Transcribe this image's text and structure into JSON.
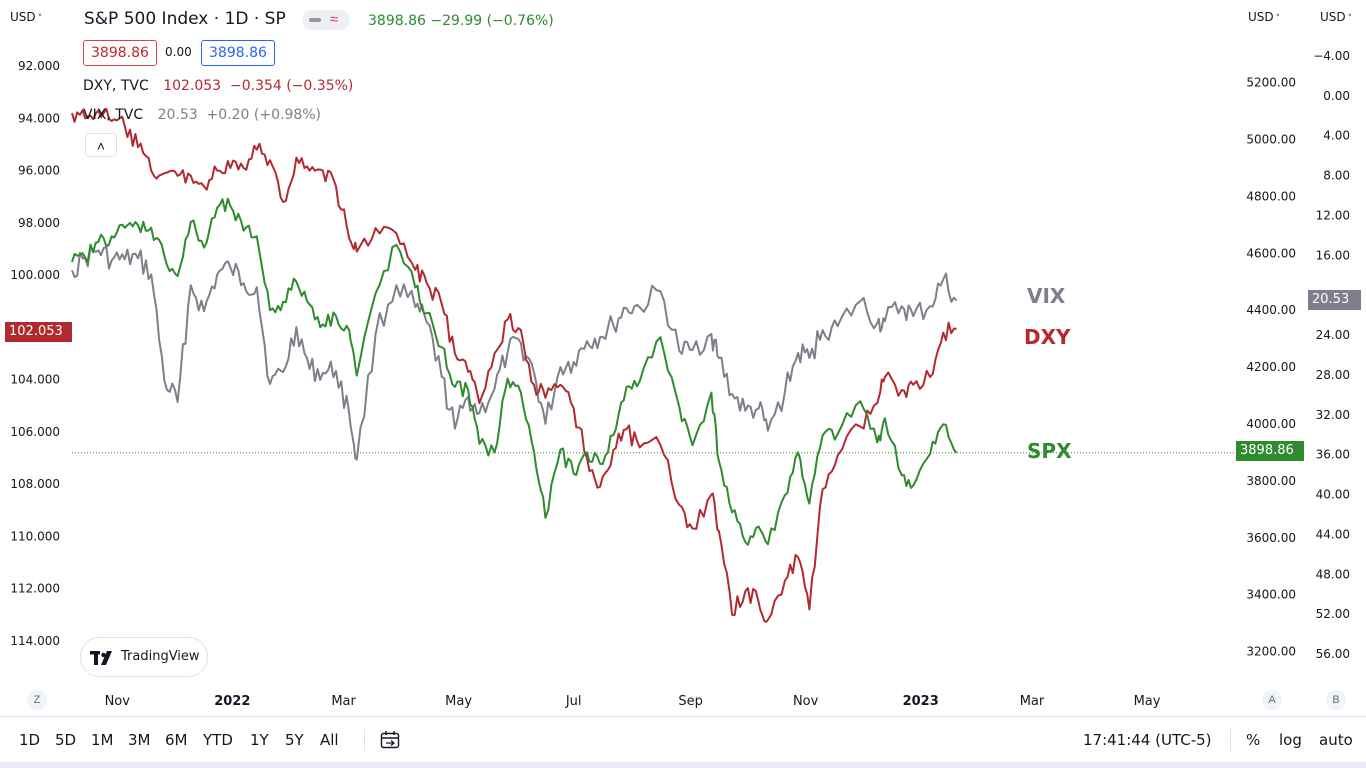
{
  "header": {
    "title": "S&P 500 Index · 1D · SP",
    "price": "3898.86",
    "change": "−29.99 (−0.76%)",
    "currency_left": "USD",
    "currency_right1": "USD",
    "currency_right2": "USD",
    "box_red": "3898.86",
    "box_mid": "0.00",
    "box_blue": "3898.86"
  },
  "legend": {
    "dxy_name": "DXY, TVC",
    "dxy_values": "102.053  −0.354 (−0.35%)",
    "vix_name": "VIX, TVC",
    "vix_values": "20.53  +0.20 (+0.98%)"
  },
  "price_tags": {
    "dxy": "102.053",
    "vix": "20.53",
    "spx": "3898.86"
  },
  "watermark": "TradingView",
  "range_buttons": [
    "1D",
    "5D",
    "1M",
    "3M",
    "6M",
    "YTD",
    "1Y",
    "5Y",
    "All"
  ],
  "clock": "17:41:44 (UTC-5)",
  "options": {
    "percent": "%",
    "log": "log",
    "auto": "auto"
  },
  "scale_buttons": {
    "z": "Z",
    "a": "A",
    "b": "B"
  },
  "colors": {
    "spx": "#2e8b2e",
    "dxy": "#b22a30",
    "vix": "#7f7f8c",
    "spx_text": "#2e8b2e"
  },
  "chart_data": {
    "type": "line",
    "x_ticks": [
      {
        "date": "2021-11-01",
        "label": "Nov"
      },
      {
        "date": "2022-01-01",
        "label": "2022",
        "bold": true
      },
      {
        "date": "2022-03-01",
        "label": "Mar"
      },
      {
        "date": "2022-05-01",
        "label": "May"
      },
      {
        "date": "2022-07-01",
        "label": "Jul"
      },
      {
        "date": "2022-09-01",
        "label": "Sep"
      },
      {
        "date": "2022-11-01",
        "label": "Nov"
      },
      {
        "date": "2023-01-01",
        "label": "2023",
        "bold": true
      },
      {
        "date": "2023-03-01",
        "label": "Mar"
      },
      {
        "date": "2023-05-01",
        "label": "May"
      }
    ],
    "x_range": [
      "2021-10-08",
      "2023-06-14"
    ],
    "axes": {
      "dxy": {
        "side": "left",
        "inverted": true,
        "range": [
          91.0,
          115.5
        ],
        "ticks": [
          92,
          94,
          96,
          98,
          100,
          102,
          104,
          106,
          108,
          110,
          112,
          114
        ]
      },
      "spx": {
        "side": "right",
        "range": [
          3100,
          5350
        ],
        "ticks": [
          3200,
          3400,
          3600,
          3800,
          4000,
          4200,
          4400,
          4600,
          4800,
          5000,
          5200
        ]
      },
      "vix": {
        "side": "right",
        "inverted": true,
        "range": [
          -5.6,
          58.6
        ],
        "ticks": [
          -4,
          0,
          4,
          8,
          12,
          16,
          20,
          24,
          28,
          32,
          36,
          40,
          44,
          48,
          52,
          56
        ]
      }
    },
    "series": [
      {
        "name": "SPX",
        "axis": "spx",
        "points": [
          [
            "2021-10-08",
            4570
          ],
          [
            "2021-10-15",
            4585
          ],
          [
            "2021-10-22",
            4640
          ],
          [
            "2021-10-29",
            4660
          ],
          [
            "2021-11-05",
            4690
          ],
          [
            "2021-11-12",
            4700
          ],
          [
            "2021-11-19",
            4690
          ],
          [
            "2021-11-26",
            4590
          ],
          [
            "2021-12-03",
            4520
          ],
          [
            "2021-12-10",
            4710
          ],
          [
            "2021-12-17",
            4620
          ],
          [
            "2021-12-24",
            4760
          ],
          [
            "2021-12-31",
            4766
          ],
          [
            "2022-01-07",
            4680
          ],
          [
            "2022-01-14",
            4660
          ],
          [
            "2022-01-21",
            4400
          ],
          [
            "2022-01-28",
            4430
          ],
          [
            "2022-02-04",
            4500
          ],
          [
            "2022-02-11",
            4420
          ],
          [
            "2022-02-18",
            4350
          ],
          [
            "2022-02-25",
            4380
          ],
          [
            "2022-03-04",
            4330
          ],
          [
            "2022-03-08",
            4170
          ],
          [
            "2022-03-18",
            4460
          ],
          [
            "2022-03-29",
            4630
          ],
          [
            "2022-04-08",
            4480
          ],
          [
            "2022-04-14",
            4390
          ],
          [
            "2022-04-22",
            4270
          ],
          [
            "2022-04-29",
            4130
          ],
          [
            "2022-05-06",
            4120
          ],
          [
            "2022-05-12",
            3930
          ],
          [
            "2022-05-20",
            3900
          ],
          [
            "2022-05-27",
            4160
          ],
          [
            "2022-06-03",
            4110
          ],
          [
            "2022-06-10",
            3900
          ],
          [
            "2022-06-16",
            3670
          ],
          [
            "2022-06-24",
            3910
          ],
          [
            "2022-07-01",
            3825
          ],
          [
            "2022-07-08",
            3900
          ],
          [
            "2022-07-15",
            3860
          ],
          [
            "2022-07-22",
            3960
          ],
          [
            "2022-07-29",
            4130
          ],
          [
            "2022-08-05",
            4150
          ],
          [
            "2022-08-16",
            4305
          ],
          [
            "2022-08-26",
            4060
          ],
          [
            "2022-09-02",
            3925
          ],
          [
            "2022-09-12",
            4110
          ],
          [
            "2022-09-16",
            3870
          ],
          [
            "2022-09-23",
            3690
          ],
          [
            "2022-09-30",
            3585
          ],
          [
            "2022-10-07",
            3640
          ],
          [
            "2022-10-12",
            3577
          ],
          [
            "2022-10-21",
            3750
          ],
          [
            "2022-10-28",
            3900
          ],
          [
            "2022-11-03",
            3720
          ],
          [
            "2022-11-10",
            3960
          ],
          [
            "2022-11-18",
            3965
          ],
          [
            "2022-11-30",
            4080
          ],
          [
            "2022-12-09",
            3935
          ],
          [
            "2022-12-13",
            4020
          ],
          [
            "2022-12-22",
            3820
          ],
          [
            "2022-12-28",
            3783
          ],
          [
            "2023-01-06",
            3895
          ],
          [
            "2023-01-13",
            3999
          ],
          [
            "2023-01-20",
            3898.86
          ]
        ]
      },
      {
        "name": "DXY",
        "axis": "dxy",
        "points": [
          [
            "2021-10-08",
            93.8
          ],
          [
            "2021-10-15",
            94.0
          ],
          [
            "2021-10-22",
            93.7
          ],
          [
            "2021-10-29",
            94.1
          ],
          [
            "2021-11-05",
            94.3
          ],
          [
            "2021-11-12",
            95.1
          ],
          [
            "2021-11-19",
            96.0
          ],
          [
            "2021-11-26",
            96.1
          ],
          [
            "2021-12-03",
            96.2
          ],
          [
            "2021-12-10",
            96.2
          ],
          [
            "2021-12-17",
            96.6
          ],
          [
            "2021-12-24",
            96.0
          ],
          [
            "2021-12-31",
            95.9
          ],
          [
            "2022-01-07",
            95.9
          ],
          [
            "2022-01-14",
            95.2
          ],
          [
            "2022-01-21",
            95.6
          ],
          [
            "2022-01-28",
            97.2
          ],
          [
            "2022-02-04",
            95.5
          ],
          [
            "2022-02-11",
            96.0
          ],
          [
            "2022-02-18",
            96.0
          ],
          [
            "2022-02-25",
            96.6
          ],
          [
            "2022-03-04",
            98.6
          ],
          [
            "2022-03-08",
            99.1
          ],
          [
            "2022-03-18",
            98.2
          ],
          [
            "2022-03-29",
            98.4
          ],
          [
            "2022-04-08",
            99.8
          ],
          [
            "2022-04-14",
            100.3
          ],
          [
            "2022-04-22",
            101.1
          ],
          [
            "2022-04-29",
            103.0
          ],
          [
            "2022-05-06",
            103.7
          ],
          [
            "2022-05-12",
            104.9
          ],
          [
            "2022-05-20",
            103.0
          ],
          [
            "2022-05-27",
            101.7
          ],
          [
            "2022-06-03",
            102.1
          ],
          [
            "2022-06-10",
            104.2
          ],
          [
            "2022-06-16",
            104.7
          ],
          [
            "2022-06-24",
            104.2
          ],
          [
            "2022-07-01",
            105.1
          ],
          [
            "2022-07-08",
            107.0
          ],
          [
            "2022-07-15",
            108.1
          ],
          [
            "2022-07-22",
            106.7
          ],
          [
            "2022-07-29",
            105.9
          ],
          [
            "2022-08-05",
            106.6
          ],
          [
            "2022-08-16",
            106.5
          ],
          [
            "2022-08-26",
            108.8
          ],
          [
            "2022-09-02",
            109.7
          ],
          [
            "2022-09-12",
            108.4
          ],
          [
            "2022-09-16",
            109.8
          ],
          [
            "2022-09-23",
            113.0
          ],
          [
            "2022-09-30",
            112.1
          ],
          [
            "2022-10-07",
            112.5
          ],
          [
            "2022-10-12",
            113.2
          ],
          [
            "2022-10-21",
            111.7
          ],
          [
            "2022-10-28",
            110.8
          ],
          [
            "2022-11-03",
            112.8
          ],
          [
            "2022-11-10",
            108.2
          ],
          [
            "2022-11-18",
            106.9
          ],
          [
            "2022-11-30",
            105.8
          ],
          [
            "2022-12-09",
            104.9
          ],
          [
            "2022-12-13",
            103.9
          ],
          [
            "2022-12-22",
            104.4
          ],
          [
            "2022-12-28",
            104.2
          ],
          [
            "2023-01-06",
            103.9
          ],
          [
            "2023-01-13",
            102.2
          ],
          [
            "2023-01-20",
            102.053
          ]
        ]
      },
      {
        "name": "VIX",
        "axis": "vix",
        "points": [
          [
            "2021-10-08",
            17.5
          ],
          [
            "2021-10-15",
            16.3
          ],
          [
            "2021-10-22",
            15.5
          ],
          [
            "2021-10-29",
            16.5
          ],
          [
            "2021-11-05",
            16.4
          ],
          [
            "2021-11-12",
            16.3
          ],
          [
            "2021-11-19",
            17.9
          ],
          [
            "2021-11-26",
            28.6
          ],
          [
            "2021-12-03",
            30.7
          ],
          [
            "2021-12-10",
            19.0
          ],
          [
            "2021-12-17",
            21.6
          ],
          [
            "2021-12-24",
            17.9
          ],
          [
            "2021-12-31",
            17.2
          ],
          [
            "2022-01-07",
            18.8
          ],
          [
            "2022-01-14",
            19.2
          ],
          [
            "2022-01-21",
            28.9
          ],
          [
            "2022-01-28",
            27.7
          ],
          [
            "2022-02-04",
            23.2
          ],
          [
            "2022-02-11",
            27.4
          ],
          [
            "2022-02-18",
            27.8
          ],
          [
            "2022-02-25",
            27.6
          ],
          [
            "2022-03-04",
            31.9
          ],
          [
            "2022-03-08",
            36.5
          ],
          [
            "2022-03-18",
            23.9
          ],
          [
            "2022-03-29",
            19.0
          ],
          [
            "2022-04-08",
            21.2
          ],
          [
            "2022-04-14",
            22.7
          ],
          [
            "2022-04-22",
            28.2
          ],
          [
            "2022-04-29",
            33.4
          ],
          [
            "2022-05-06",
            30.2
          ],
          [
            "2022-05-12",
            31.8
          ],
          [
            "2022-05-20",
            29.4
          ],
          [
            "2022-05-27",
            25.7
          ],
          [
            "2022-06-03",
            24.8
          ],
          [
            "2022-06-10",
            27.8
          ],
          [
            "2022-06-16",
            32.9
          ],
          [
            "2022-06-24",
            27.2
          ],
          [
            "2022-07-01",
            26.7
          ],
          [
            "2022-07-08",
            24.6
          ],
          [
            "2022-07-15",
            24.2
          ],
          [
            "2022-07-22",
            23.0
          ],
          [
            "2022-07-29",
            21.3
          ],
          [
            "2022-08-05",
            21.2
          ],
          [
            "2022-08-16",
            19.6
          ],
          [
            "2022-08-26",
            25.6
          ],
          [
            "2022-09-02",
            25.5
          ],
          [
            "2022-09-12",
            23.9
          ],
          [
            "2022-09-16",
            26.3
          ],
          [
            "2022-09-23",
            29.9
          ],
          [
            "2022-09-30",
            31.6
          ],
          [
            "2022-10-07",
            31.4
          ],
          [
            "2022-10-12",
            33.6
          ],
          [
            "2022-10-21",
            29.7
          ],
          [
            "2022-10-28",
            25.8
          ],
          [
            "2022-11-03",
            26.3
          ],
          [
            "2022-11-10",
            23.5
          ],
          [
            "2022-11-18",
            23.1
          ],
          [
            "2022-11-30",
            20.6
          ],
          [
            "2022-12-09",
            22.8
          ],
          [
            "2022-12-13",
            22.6
          ],
          [
            "2022-12-22",
            21.1
          ],
          [
            "2022-12-28",
            22.1
          ],
          [
            "2023-01-06",
            21.1
          ],
          [
            "2023-01-13",
            18.4
          ],
          [
            "2023-01-20",
            20.53
          ]
        ]
      }
    ],
    "end_labels": {
      "vix": "VIX",
      "dxy": "DXY",
      "spx": "SPX"
    },
    "price_line": {
      "series": "SPX",
      "value": 3898.86,
      "style": "dotted"
    },
    "grid": false,
    "legend_placement": "top-left"
  }
}
